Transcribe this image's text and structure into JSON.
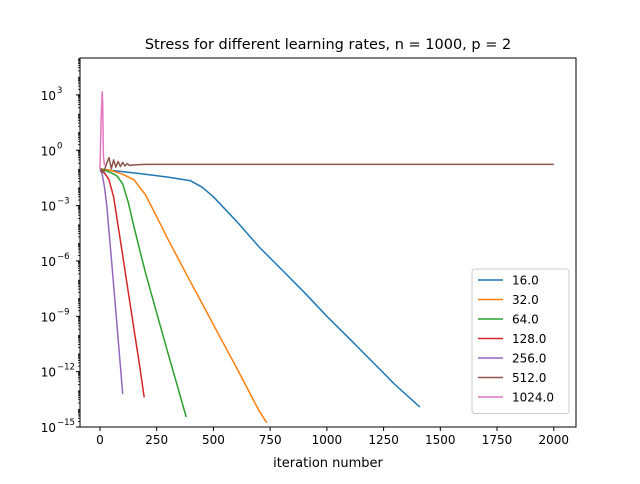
{
  "chart_data": {
    "type": "line",
    "title": "Stress for different learning rates, n = 1000, p = 2",
    "xlabel": "iteration number",
    "ylabel": "",
    "yscale": "log",
    "xlim": [
      -88,
      2098
    ],
    "ylim": [
      1e-15,
      100000
    ],
    "xticks": [
      0,
      250,
      500,
      750,
      1000,
      1250,
      1500,
      1750,
      2000
    ],
    "xtick_labels": [
      "0",
      "250",
      "500",
      "750",
      "1000",
      "1250",
      "1500",
      "1750",
      "2000"
    ],
    "yticks": [
      1e-15,
      1e-12,
      1e-09,
      1e-06,
      0.001,
      1,
      1000
    ],
    "ytick_labels": [
      "10",
      "10",
      "10",
      "10",
      "10",
      "10",
      "10"
    ],
    "ytick_exponents": [
      "−15",
      "−12",
      "−9",
      "−6",
      "−3",
      "0",
      "3"
    ],
    "grid": false,
    "legend_position": "lower-right",
    "series": [
      {
        "name": "16.0",
        "color": "#1f77b4",
        "x": [
          0,
          50,
          100,
          200,
          300,
          400,
          450,
          500,
          600,
          700,
          800,
          900,
          1000,
          1100,
          1200,
          1300,
          1410
        ],
        "y": [
          0.1,
          0.08,
          0.07,
          0.05,
          0.035,
          0.022,
          0.01,
          0.003,
          0.00015,
          6e-06,
          3.5e-07,
          2e-08,
          1e-09,
          6e-11,
          3.5e-12,
          2e-13,
          1.2e-14
        ]
      },
      {
        "name": "32.0",
        "color": "#ff7f0e",
        "x": [
          0,
          50,
          100,
          150,
          200,
          250,
          300,
          350,
          400,
          450,
          500,
          550,
          600,
          650,
          700,
          735
        ],
        "y": [
          0.1,
          0.08,
          0.05,
          0.025,
          0.004,
          0.00025,
          1.5e-05,
          1e-06,
          7e-08,
          5e-09,
          3.5e-10,
          2.5e-11,
          1.8e-12,
          1.2e-13,
          8e-15,
          1.7e-15
        ]
      },
      {
        "name": "64.0",
        "color": "#2ca02c",
        "x": [
          0,
          25,
          50,
          75,
          100,
          125,
          150,
          175,
          200,
          250,
          300,
          350,
          380
        ],
        "y": [
          0.1,
          0.08,
          0.06,
          0.04,
          0.015,
          0.0015,
          7e-05,
          4e-06,
          2.5e-07,
          1.5e-09,
          1e-11,
          7e-14,
          3.5e-15
        ]
      },
      {
        "name": "128.0",
        "color": "#d62728",
        "x": [
          0,
          20,
          40,
          60,
          80,
          100,
          125,
          150,
          175,
          195
        ],
        "y": [
          0.1,
          0.06,
          0.025,
          0.003,
          8e-05,
          2e-06,
          2e-08,
          2e-10,
          2e-12,
          4e-14
        ]
      },
      {
        "name": "256.0",
        "color": "#9467bd",
        "x": [
          0,
          10,
          20,
          30,
          40,
          50,
          60,
          70,
          80,
          90,
          100
        ],
        "y": [
          0.1,
          0.05,
          0.01,
          0.001,
          4e-05,
          1.5e-06,
          5e-08,
          2e-09,
          6e-11,
          2e-12,
          6e-14
        ]
      },
      {
        "name": "512.0",
        "color": "#8c564b",
        "x": [
          0,
          15,
          30,
          40,
          50,
          60,
          70,
          80,
          90,
          100,
          110,
          120,
          130,
          150,
          200,
          500,
          1000,
          1500,
          2000
        ],
        "y": [
          0.08,
          0.06,
          0.2,
          0.4,
          0.1,
          0.3,
          0.12,
          0.25,
          0.13,
          0.22,
          0.14,
          0.19,
          0.15,
          0.16,
          0.17,
          0.17,
          0.17,
          0.17,
          0.17
        ]
      },
      {
        "name": "1024.0",
        "color": "#e377c2",
        "x": [
          0,
          5,
          10,
          12,
          15,
          20
        ],
        "y": [
          0.1,
          50,
          1500,
          300,
          0.5,
          0.15
        ]
      }
    ]
  }
}
